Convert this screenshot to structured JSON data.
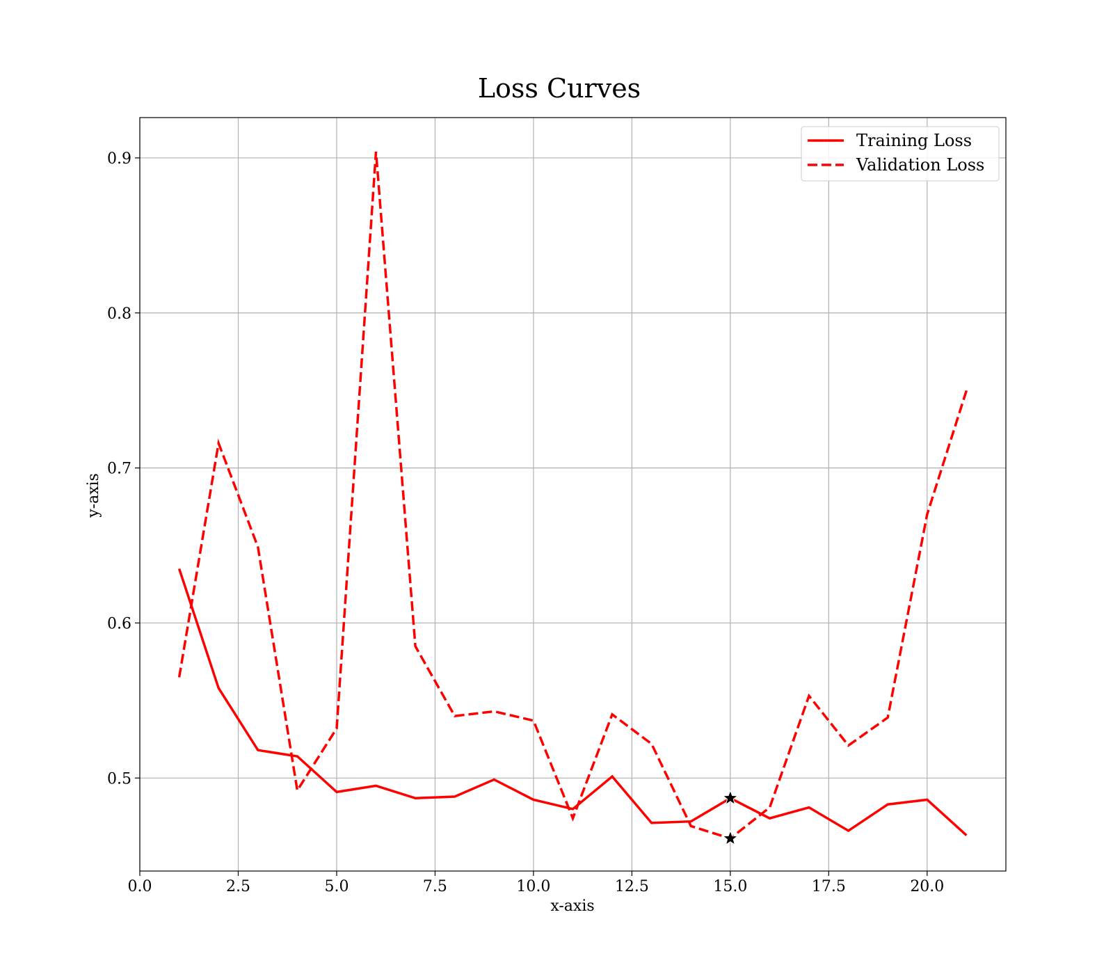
{
  "chart_data": {
    "type": "line",
    "title": "Loss Curves",
    "xlabel": "x-axis",
    "ylabel": "y-axis",
    "xlim": [
      0.0,
      22.0
    ],
    "ylim": [
      0.44,
      0.926
    ],
    "xticks": [
      0.0,
      2.5,
      5.0,
      7.5,
      10.0,
      12.5,
      15.0,
      17.5,
      20.0
    ],
    "xtick_labels": [
      "0.0",
      "2.5",
      "5.0",
      "7.5",
      "10.0",
      "12.5",
      "15.0",
      "17.5",
      "20.0"
    ],
    "yticks": [
      0.5,
      0.6,
      0.7,
      0.8,
      0.9
    ],
    "ytick_labels": [
      "0.5",
      "0.6",
      "0.7",
      "0.8",
      "0.9"
    ],
    "grid": true,
    "legend_position": "top-right",
    "x": [
      1,
      2,
      3,
      4,
      5,
      6,
      7,
      8,
      9,
      10,
      11,
      12,
      13,
      14,
      15,
      16,
      17,
      18,
      19,
      20,
      21
    ],
    "series": [
      {
        "name": "Training Loss",
        "style": "solid",
        "color": "#ff0000",
        "values": [
          0.635,
          0.558,
          0.518,
          0.514,
          0.491,
          0.495,
          0.487,
          0.488,
          0.499,
          0.486,
          0.48,
          0.501,
          0.471,
          0.472,
          0.487,
          0.474,
          0.481,
          0.466,
          0.483,
          0.486,
          0.463
        ]
      },
      {
        "name": "Validation Loss",
        "style": "dashed",
        "color": "#ff0000",
        "values": [
          0.565,
          0.716,
          0.649,
          0.492,
          0.532,
          0.904,
          0.585,
          0.54,
          0.543,
          0.537,
          0.474,
          0.541,
          0.522,
          0.469,
          0.461,
          0.481,
          0.553,
          0.521,
          0.539,
          0.67,
          0.75
        ]
      }
    ],
    "markers": [
      {
        "x": 15,
        "y": 0.487,
        "symbol": "star",
        "color": "#000000"
      },
      {
        "x": 15,
        "y": 0.461,
        "symbol": "star",
        "color": "#000000"
      }
    ]
  }
}
